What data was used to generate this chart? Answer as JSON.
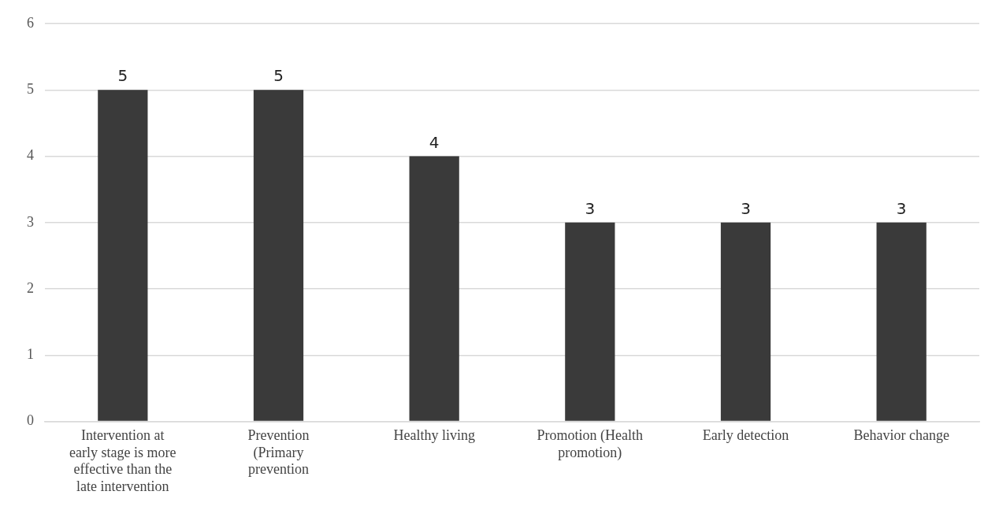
{
  "chart_data": {
    "type": "bar",
    "categories": [
      "Intervention at early stage is more effective than the late intervention",
      "Prevention (Primary prevention",
      "Healthy living",
      "Promotion (Health promotion)",
      "Early detection",
      "Behavior change"
    ],
    "values": [
      5,
      5,
      4,
      3,
      3,
      3
    ],
    "color": "#3a3a3a",
    "ylim": [
      0,
      6
    ],
    "yticks": [
      0,
      1,
      2,
      3,
      4,
      5,
      6
    ],
    "grid": "y",
    "data_labels": true,
    "legend": false
  }
}
